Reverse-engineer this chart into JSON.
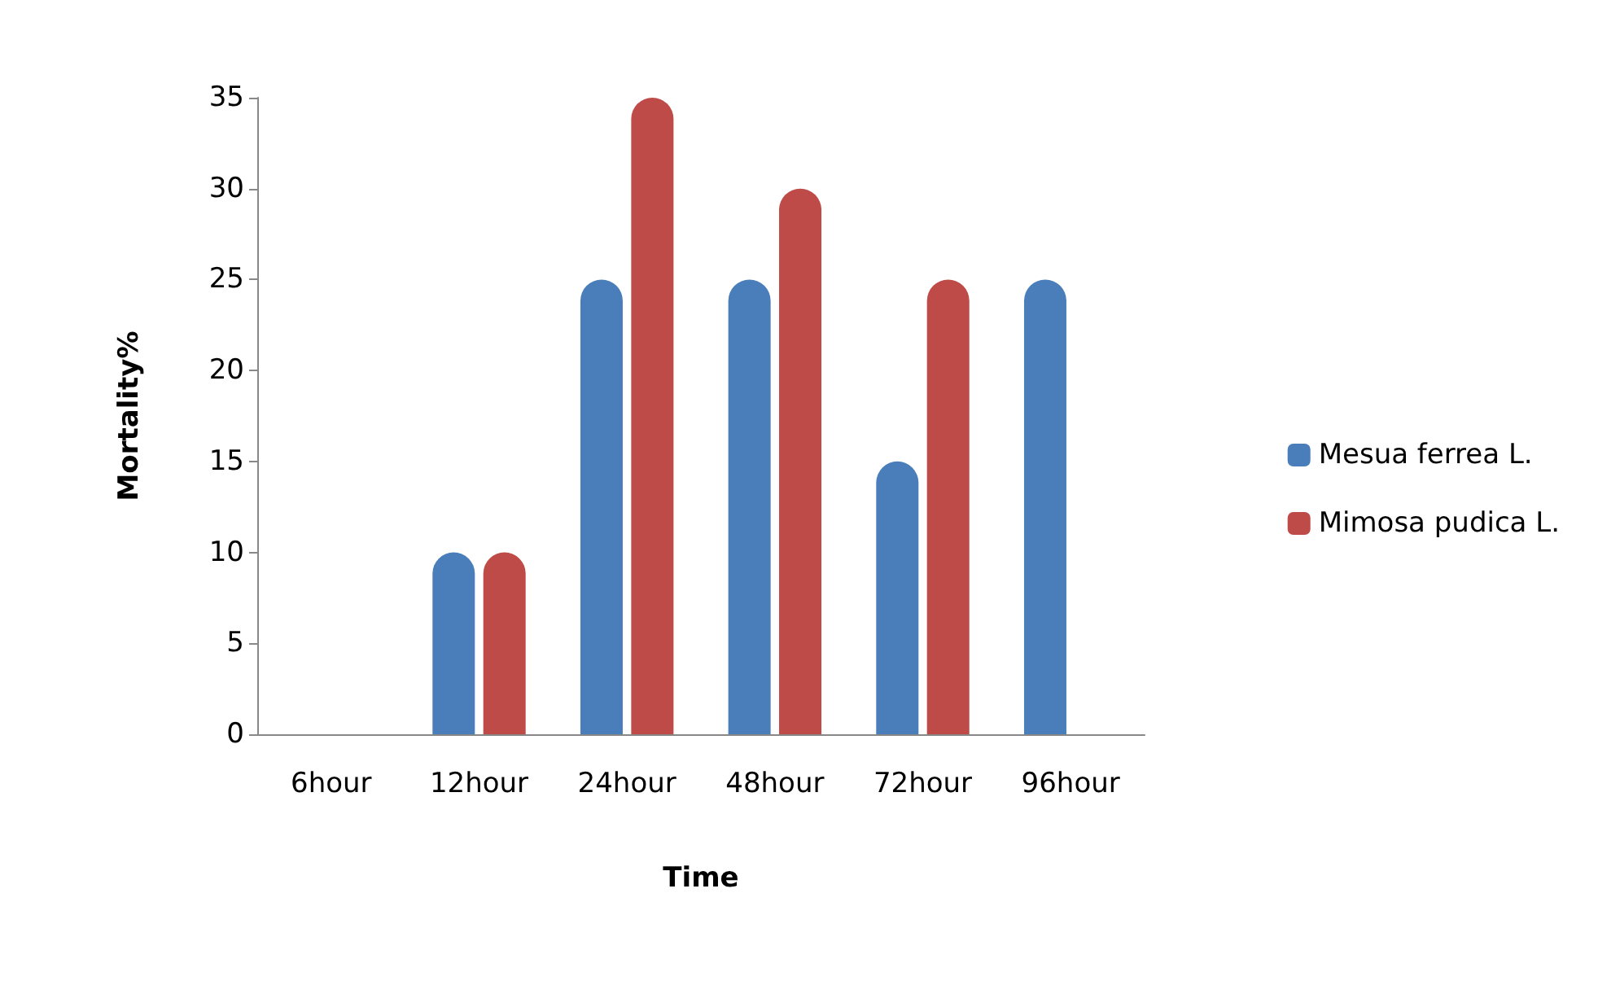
{
  "chart_data": {
    "type": "bar",
    "xlabel": "Time",
    "ylabel": "Mortality%",
    "categories": [
      "6hour",
      "12hour",
      "24hour",
      "48hour",
      "72hour",
      "96hour"
    ],
    "series": [
      {
        "name": "Mesua ferrea L.",
        "color": "#4a7ebb",
        "values": [
          0,
          10,
          25,
          25,
          15,
          25
        ]
      },
      {
        "name": "Mimosa pudica L.",
        "color": "#be4b48",
        "values": [
          0,
          10,
          35,
          30,
          25,
          null
        ]
      }
    ],
    "ylim": [
      0,
      35
    ],
    "yticks": [
      0,
      5,
      10,
      15,
      20,
      25,
      30,
      35
    ],
    "grid": false,
    "legend": "right"
  }
}
